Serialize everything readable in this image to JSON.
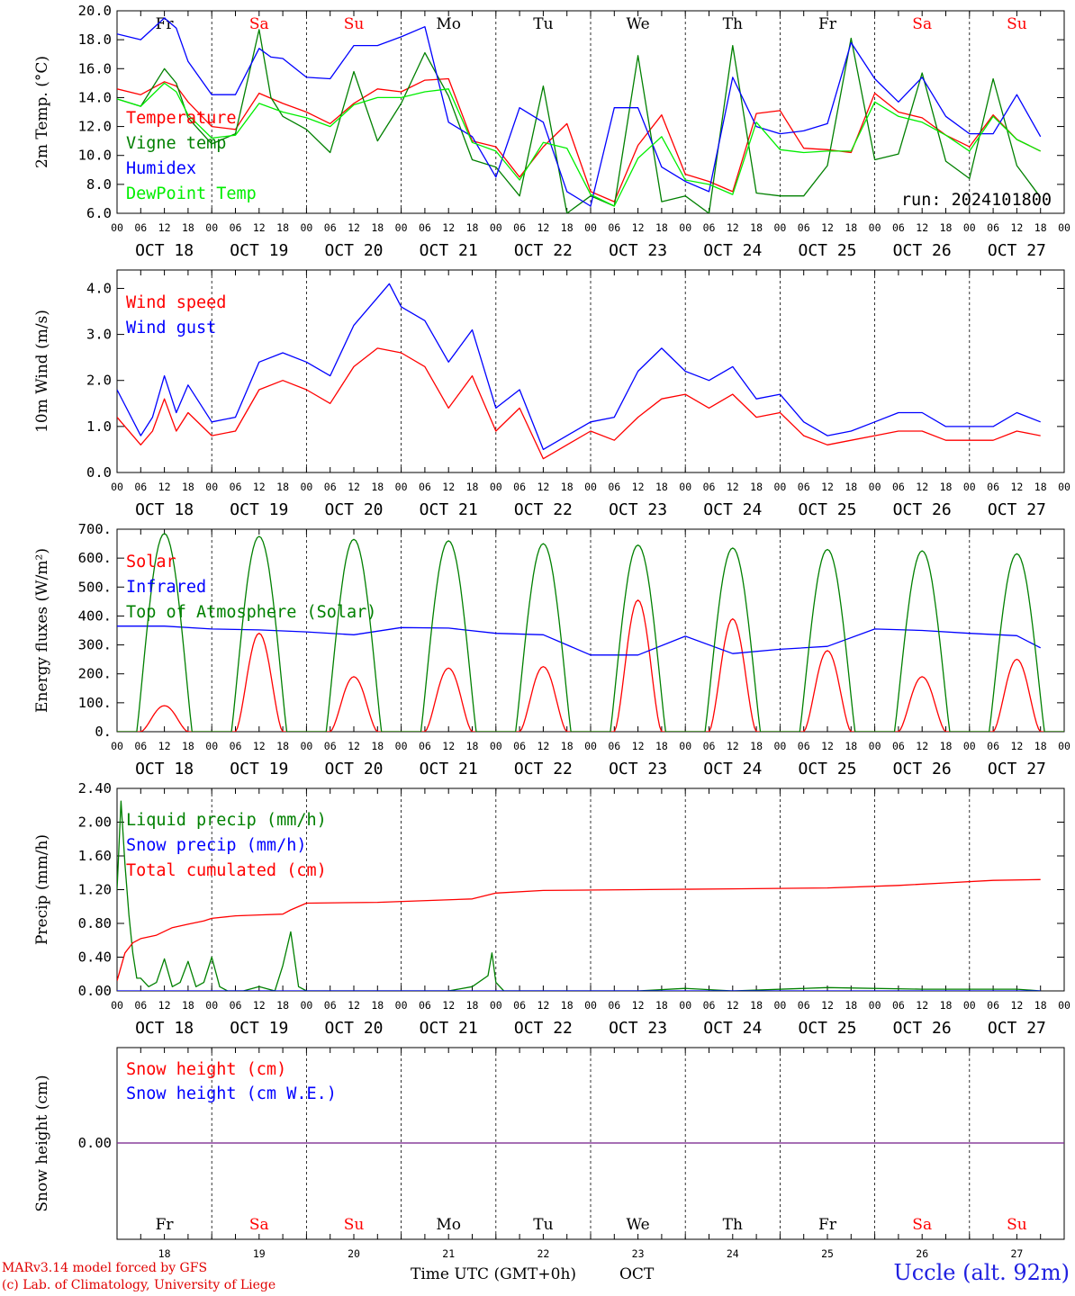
{
  "chart_data": [
    {
      "type": "line",
      "ylabel": "2m Temp. (°C)",
      "ylim": [
        6.0,
        20.0
      ],
      "yticks": [
        "20.0",
        "18.0",
        "16.0",
        "14.0",
        "12.0",
        "10.0",
        "8.0",
        "6.0"
      ],
      "annotation": "run: 2024101800",
      "x_unit": "hours since OCT 18 00 UTC",
      "series": [
        {
          "name": "Temperature",
          "color": "#ff0000",
          "x": [
            0,
            6,
            12,
            15,
            18,
            24,
            30,
            36,
            42,
            48,
            54,
            60,
            66,
            72,
            78,
            84,
            90,
            96,
            102,
            108,
            114,
            120,
            126,
            132,
            138,
            144,
            150,
            156,
            162,
            168,
            174,
            180,
            186,
            192,
            198,
            204,
            210,
            216,
            222,
            228,
            234
          ],
          "values": [
            14.6,
            14.2,
            15.1,
            14.8,
            13.7,
            12.0,
            11.8,
            14.3,
            13.6,
            13.0,
            12.2,
            13.6,
            14.6,
            14.4,
            15.2,
            15.3,
            11.0,
            10.6,
            8.5,
            10.6,
            12.2,
            7.5,
            6.8,
            10.7,
            12.8,
            8.7,
            8.2,
            7.5,
            12.9,
            13.1,
            10.5,
            10.4,
            10.2,
            14.3,
            13.0,
            12.6,
            11.4,
            10.6,
            12.8,
            11.1,
            10.3
          ]
        },
        {
          "name": "Vigne temp",
          "color": "#008000",
          "x": [
            0,
            6,
            12,
            15,
            18,
            24,
            30,
            36,
            39,
            42,
            48,
            54,
            60,
            66,
            72,
            78,
            84,
            90,
            96,
            102,
            108,
            114,
            120,
            126,
            132,
            138,
            144,
            150,
            156,
            162,
            168,
            174,
            180,
            186,
            192,
            198,
            204,
            210,
            216,
            222,
            228,
            234
          ],
          "values": [
            13.9,
            13.4,
            16.0,
            15.0,
            12.6,
            10.8,
            11.5,
            18.7,
            14.0,
            12.7,
            11.8,
            10.2,
            15.8,
            11.0,
            13.6,
            17.1,
            14.1,
            9.7,
            9.2,
            7.2,
            14.8,
            6.0,
            7.2,
            6.5,
            16.9,
            6.8,
            7.2,
            6.0,
            17.6,
            7.4,
            7.2,
            7.2,
            9.3,
            18.1,
            9.7,
            10.1,
            15.7,
            9.6,
            8.4,
            15.3,
            9.3,
            7.1
          ]
        },
        {
          "name": "Humidex",
          "color": "#0000ff",
          "x": [
            0,
            6,
            12,
            15,
            18,
            24,
            30,
            36,
            39,
            42,
            48,
            54,
            60,
            66,
            72,
            78,
            84,
            90,
            96,
            102,
            108,
            114,
            120,
            126,
            132,
            138,
            144,
            150,
            156,
            162,
            168,
            174,
            180,
            186,
            192,
            198,
            204,
            210,
            216,
            222,
            228,
            234
          ],
          "values": [
            18.4,
            18.0,
            19.5,
            18.8,
            16.5,
            14.2,
            14.2,
            17.4,
            16.8,
            16.7,
            15.4,
            15.3,
            17.6,
            17.6,
            18.2,
            18.9,
            12.3,
            11.3,
            8.5,
            13.3,
            12.3,
            7.5,
            6.5,
            13.3,
            13.3,
            9.2,
            8.2,
            7.5,
            15.4,
            12.0,
            11.5,
            11.7,
            12.2,
            17.8,
            15.3,
            13.7,
            15.4,
            12.7,
            11.5,
            11.5,
            14.2,
            11.3
          ]
        },
        {
          "name": "DewPoint Temp",
          "color": "#00ee00",
          "x": [
            0,
            6,
            12,
            15,
            18,
            24,
            30,
            36,
            42,
            48,
            54,
            60,
            66,
            72,
            78,
            84,
            90,
            96,
            102,
            108,
            114,
            120,
            126,
            132,
            138,
            144,
            150,
            156,
            162,
            168,
            174,
            180,
            186,
            192,
            198,
            204,
            210,
            216,
            222,
            228,
            234
          ],
          "values": [
            13.9,
            13.4,
            15.0,
            14.4,
            12.8,
            11.2,
            11.4,
            13.6,
            13.0,
            12.6,
            12.0,
            13.5,
            14.0,
            14.0,
            14.4,
            14.6,
            10.9,
            10.3,
            8.3,
            10.9,
            10.5,
            7.3,
            6.5,
            9.8,
            11.3,
            8.3,
            8.0,
            7.3,
            12.3,
            10.4,
            10.2,
            10.3,
            10.3,
            13.7,
            12.7,
            12.3,
            11.4,
            10.3,
            12.7,
            11.1,
            10.3
          ]
        }
      ]
    },
    {
      "type": "line",
      "ylabel": "10m Wind (m/s)",
      "ylim": [
        0.0,
        4.4
      ],
      "yticks": [
        "4.0",
        "3.0",
        "2.0",
        "1.0",
        "0.0"
      ],
      "series": [
        {
          "name": "Wind speed",
          "color": "#ff0000",
          "x": [
            0,
            6,
            9,
            12,
            15,
            18,
            24,
            30,
            36,
            42,
            48,
            54,
            60,
            66,
            72,
            78,
            84,
            90,
            96,
            102,
            108,
            114,
            120,
            126,
            132,
            138,
            144,
            150,
            156,
            162,
            168,
            174,
            180,
            186,
            192,
            198,
            204,
            210,
            216,
            222,
            228,
            234
          ],
          "values": [
            1.2,
            0.6,
            0.9,
            1.6,
            0.9,
            1.3,
            0.8,
            0.9,
            1.8,
            2.0,
            1.8,
            1.5,
            2.3,
            2.7,
            2.6,
            2.3,
            1.4,
            2.1,
            0.9,
            1.4,
            0.3,
            0.6,
            0.9,
            0.7,
            1.2,
            1.6,
            1.7,
            1.4,
            1.7,
            1.2,
            1.3,
            0.8,
            0.6,
            0.7,
            0.8,
            0.9,
            0.9,
            0.7,
            0.7,
            0.7,
            0.9,
            0.8
          ]
        },
        {
          "name": "Wind gust",
          "color": "#0000ff",
          "x": [
            0,
            6,
            9,
            12,
            15,
            18,
            24,
            30,
            36,
            42,
            48,
            54,
            60,
            66,
            69,
            72,
            78,
            84,
            90,
            96,
            102,
            108,
            114,
            120,
            126,
            132,
            138,
            144,
            150,
            156,
            162,
            168,
            174,
            180,
            186,
            192,
            198,
            204,
            210,
            216,
            222,
            228,
            234
          ],
          "values": [
            1.8,
            0.8,
            1.2,
            2.1,
            1.3,
            1.9,
            1.1,
            1.2,
            2.4,
            2.6,
            2.4,
            2.1,
            3.2,
            3.8,
            4.1,
            3.6,
            3.3,
            2.4,
            3.1,
            1.4,
            1.8,
            0.5,
            0.8,
            1.1,
            1.2,
            2.2,
            2.7,
            2.2,
            2.0,
            2.3,
            1.6,
            1.7,
            1.1,
            0.8,
            0.9,
            1.1,
            1.3,
            1.3,
            1.0,
            1.0,
            1.0,
            1.3,
            1.1
          ]
        }
      ]
    },
    {
      "type": "line",
      "ylabel": "Energy fluxes (W/m²)",
      "ylim": [
        0,
        700
      ],
      "yticks": [
        "700.",
        "600.",
        "500.",
        "400.",
        "300.",
        "200.",
        "100.",
        "0."
      ],
      "series": [
        {
          "name": "Solar",
          "color": "#ff0000",
          "peaks": [
            {
              "x": 12,
              "v": 90
            },
            {
              "x": 36,
              "v": 340
            },
            {
              "x": 60,
              "v": 190
            },
            {
              "x": 84,
              "v": 220
            },
            {
              "x": 108,
              "v": 225
            },
            {
              "x": 132,
              "v": 455
            },
            {
              "x": 156,
              "v": 390
            },
            {
              "x": 180,
              "v": 280
            },
            {
              "x": 204,
              "v": 190
            },
            {
              "x": 228,
              "v": 250
            }
          ]
        },
        {
          "name": "Infrared",
          "color": "#0000ff",
          "x": [
            0,
            12,
            24,
            36,
            48,
            60,
            72,
            84,
            96,
            108,
            120,
            132,
            144,
            156,
            168,
            180,
            192,
            204,
            216,
            228,
            234
          ],
          "values": [
            365,
            365,
            355,
            352,
            345,
            335,
            360,
            358,
            340,
            335,
            265,
            265,
            330,
            270,
            285,
            295,
            355,
            350,
            340,
            332,
            290
          ]
        },
        {
          "name": "Top of Atmosphere (Solar)",
          "color": "#008000",
          "peaks": [
            {
              "x": 12,
              "v": 685
            },
            {
              "x": 36,
              "v": 675
            },
            {
              "x": 60,
              "v": 665
            },
            {
              "x": 84,
              "v": 660
            },
            {
              "x": 108,
              "v": 650
            },
            {
              "x": 132,
              "v": 645
            },
            {
              "x": 156,
              "v": 635
            },
            {
              "x": 180,
              "v": 630
            },
            {
              "x": 204,
              "v": 625
            },
            {
              "x": 228,
              "v": 615
            }
          ]
        }
      ]
    },
    {
      "type": "line",
      "ylabel": "Precip (mm/h)",
      "ylim": [
        0.0,
        2.4
      ],
      "yticks": [
        "2.40",
        "2.00",
        "1.60",
        "1.20",
        "0.80",
        "0.40",
        "0.00"
      ],
      "series": [
        {
          "name": "Liquid precip (mm/h)",
          "color": "#008000",
          "x": [
            0,
            1,
            2,
            3,
            4,
            5,
            6,
            8,
            10,
            12,
            14,
            16,
            18,
            20,
            22,
            24,
            26,
            28,
            32,
            36,
            40,
            42,
            44,
            46,
            48,
            50,
            54,
            72,
            84,
            90,
            94,
            95,
            96,
            98,
            102,
            108,
            120,
            132,
            144,
            156,
            180,
            204,
            228,
            234
          ],
          "values": [
            1.2,
            2.25,
            1.5,
            0.9,
            0.45,
            0.15,
            0.15,
            0.05,
            0.1,
            0.38,
            0.05,
            0.1,
            0.35,
            0.05,
            0.1,
            0.4,
            0.05,
            0.0,
            0.0,
            0.05,
            0.0,
            0.3,
            0.7,
            0.05,
            0.0,
            0.0,
            0.0,
            0.0,
            0.0,
            0.05,
            0.18,
            0.45,
            0.1,
            0.0,
            0.0,
            0.0,
            0.0,
            0.0,
            0.03,
            0.0,
            0.04,
            0.02,
            0.02,
            0.0
          ]
        },
        {
          "name": "Snow precip (mm/h)",
          "color": "#0000ff",
          "x": [
            0,
            234
          ],
          "values": [
            0.0,
            0.0
          ]
        },
        {
          "name": "Total cumulated (cm)",
          "color": "#ff0000",
          "x": [
            0,
            2,
            4,
            6,
            10,
            14,
            18,
            22,
            24,
            30,
            36,
            42,
            44,
            48,
            66,
            90,
            96,
            108,
            132,
            156,
            180,
            198,
            210,
            222,
            234
          ],
          "values": [
            0.12,
            0.45,
            0.57,
            0.62,
            0.66,
            0.75,
            0.79,
            0.83,
            0.86,
            0.89,
            0.9,
            0.91,
            0.96,
            1.04,
            1.05,
            1.09,
            1.16,
            1.19,
            1.2,
            1.21,
            1.22,
            1.25,
            1.28,
            1.31,
            1.32
          ]
        }
      ]
    },
    {
      "type": "line",
      "ylabel": "Snow height (cm)",
      "yticks": [
        "0.00"
      ],
      "series": [
        {
          "name": "Snow height (cm)",
          "color": "#ff0000",
          "x": [
            0,
            234
          ],
          "values": [
            0.0,
            0.0
          ]
        },
        {
          "name": "Snow height (cm W.E.)",
          "color": "#0000ff",
          "x": [
            0,
            234
          ],
          "values": [
            0.0,
            0.0
          ]
        }
      ]
    }
  ],
  "days": [
    {
      "name": "Fr",
      "date": "OCT 18",
      "num": "18",
      "weekend": false
    },
    {
      "name": "Sa",
      "date": "OCT 19",
      "num": "19",
      "weekend": true
    },
    {
      "name": "Su",
      "date": "OCT 20",
      "num": "20",
      "weekend": true
    },
    {
      "name": "Mo",
      "date": "OCT 21",
      "num": "21",
      "weekend": false
    },
    {
      "name": "Tu",
      "date": "OCT 22",
      "num": "22",
      "weekend": false
    },
    {
      "name": "We",
      "date": "OCT 23",
      "num": "23",
      "weekend": false
    },
    {
      "name": "Th",
      "date": "OCT 24",
      "num": "24",
      "weekend": false
    },
    {
      "name": "Fr",
      "date": "OCT 25",
      "num": "25",
      "weekend": false
    },
    {
      "name": "Sa",
      "date": "OCT 26",
      "num": "26",
      "weekend": true
    },
    {
      "name": "Su",
      "date": "OCT 27",
      "num": "27",
      "weekend": true
    }
  ],
  "hour_ticks": [
    "00",
    "06",
    "12",
    "18"
  ],
  "last_hour_tick": "00",
  "colors": {
    "weekend": "#ff0000",
    "weekday": "#000000"
  },
  "footer": {
    "model": "MARv3.14 model forced by GFS",
    "copyright": "(c) Lab. of Climatology, University of Liege",
    "xlabel": "Time UTC (GMT+0h)",
    "month": "OCT",
    "station": "Uccle (alt. 92m)"
  }
}
